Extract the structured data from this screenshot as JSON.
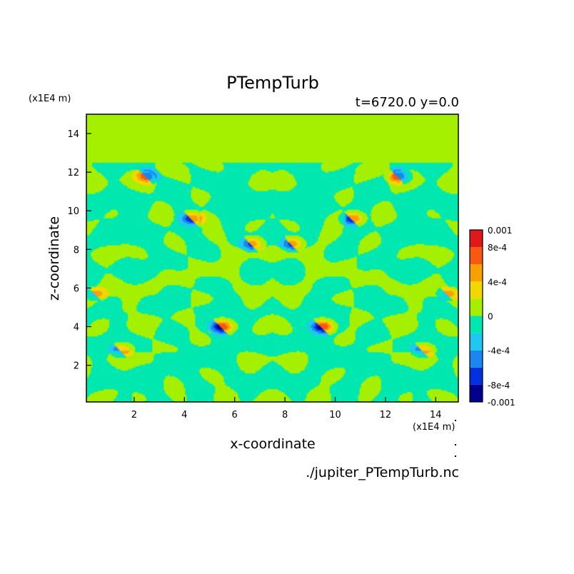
{
  "chart_data": {
    "type": "heatmap",
    "title": "PTempTurb",
    "subtitle": "t=6720.0 y=0.0",
    "xlabel": "x-coordinate",
    "ylabel": "z-coordinate",
    "x_unit": "(x1E4 m)",
    "y_unit": "(x1E4 m)",
    "source": "./jupiter_PTempTurb.nc",
    "xlim": [
      0.1,
      14.9
    ],
    "ylim": [
      0.1,
      15.0
    ],
    "x_ticks": [
      2,
      4,
      6,
      8,
      10,
      12,
      14
    ],
    "y_ticks": [
      2,
      4,
      6,
      8,
      10,
      12,
      14
    ],
    "x_tick_labels": [
      "2",
      "4",
      "6",
      "8",
      "10",
      "12",
      "14"
    ],
    "y_tick_labels": [
      "2",
      "4",
      "6",
      "8",
      "10",
      "12",
      "14"
    ],
    "colorbar": {
      "min": -0.001,
      "max": 0.001,
      "levels": [
        -0.001,
        -0.0008,
        -0.0006,
        -0.0004,
        -0.0002,
        0,
        0.0002,
        0.0004,
        0.0006,
        0.0008,
        0.001
      ],
      "colors": [
        "#00008f",
        "#0030e0",
        "#1a86f0",
        "#1ec8f0",
        "#00e8b0",
        "#a4f000",
        "#f0d800",
        "#f8a000",
        "#f85810",
        "#e01818"
      ],
      "tick_values": [
        0.001,
        0.0008,
        0.0004,
        0,
        -0.0004,
        -0.0008,
        -0.001
      ],
      "tick_labels": [
        "0.001",
        "8e-4",
        "4e-4",
        "0",
        "-4e-4",
        "-8e-4",
        "-0.001"
      ]
    },
    "field": {
      "description_values": "anomaly field; uniform ~0 above z=12.5, turbulent mix of -2e-4 and 0 bands below, symmetric about x=7.5",
      "upper_uniform_value": 0.0001,
      "turbulent_top_z": 12.5,
      "mirror_x": 7.5,
      "features": [
        {
          "x": 5.5,
          "z": 4.0,
          "amplitude": 0.0009
        },
        {
          "x": 9.5,
          "z": 4.0,
          "amplitude": 0.0009
        },
        {
          "x": 4.3,
          "z": 9.6,
          "amplitude": 0.0007
        },
        {
          "x": 10.7,
          "z": 9.6,
          "amplitude": 0.0007
        },
        {
          "x": 6.7,
          "z": 8.3,
          "amplitude": 0.0006
        },
        {
          "x": 8.3,
          "z": 8.3,
          "amplitude": 0.0006
        },
        {
          "x": 1.5,
          "z": 2.8,
          "amplitude": 0.0005
        },
        {
          "x": 13.5,
          "z": 2.8,
          "amplitude": 0.0005
        },
        {
          "x": 2.5,
          "z": 11.8,
          "amplitude": -0.0007
        },
        {
          "x": 12.5,
          "z": 11.8,
          "amplitude": -0.0007
        },
        {
          "x": 0.5,
          "z": 5.7,
          "amplitude": 0.0004
        },
        {
          "x": 14.5,
          "z": 5.7,
          "amplitude": 0.0004
        }
      ]
    }
  }
}
